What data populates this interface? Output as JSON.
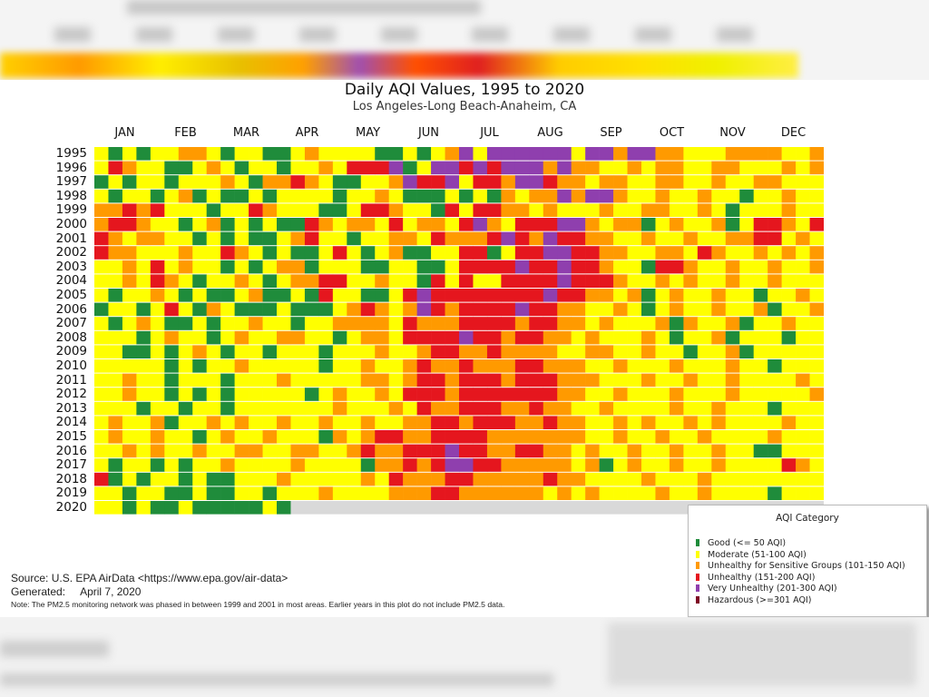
{
  "chart_data": {
    "type": "heatmap",
    "title": "Daily AQI Values, 1995 to 2020",
    "subtitle": "Los Angeles-Long Beach-Anaheim, CA",
    "x_tick_labels": [
      "JAN",
      "FEB",
      "MAR",
      "APR",
      "MAY",
      "JUN",
      "JUL",
      "AUG",
      "SEP",
      "OCT",
      "NOV",
      "DEC"
    ],
    "resolution_note_codes": {
      "G": "good",
      "M": "moderate",
      "U": "usg",
      "R": "unhealthy",
      "P": "very_unhealthy",
      "H": "hazardous"
    },
    "years": [
      "1995",
      "1996",
      "1997",
      "1998",
      "1999",
      "2000",
      "2001",
      "2002",
      "2003",
      "2004",
      "2005",
      "2006",
      "2007",
      "2008",
      "2009",
      "2010",
      "2011",
      "2012",
      "2013",
      "2014",
      "2015",
      "2016",
      "2017",
      "2018",
      "2019",
      "2020"
    ],
    "weekly_categories": [
      "MGMGMMUUMGMMGGMUMMMMGGMGMUPMPPPPPPMPPUPPUUMMMUUUUMMU",
      "MRUMMGGMUMGMMGMMUMRRRPGMPPRPRPPPUPUUMMUMUUMMUUMMMUMU",
      "GMGMMGMMMUMGUURUMGGMMUPRRPMRRUPPRUUMUUMMUUMMUMMUUMMM",
      "MGMMGMUGMGGMGMMMMGMMUMGGGMGMGUMUUPUPPUMMUMMUMMGMMUMM",
      "UURURMMMGMMRUMMMGGMRRUMMGRMRRUUMUMMMUMMUUMMUMGMMMUMM",
      "URRUMMGMUGMGMGGRUMUUMRMUUMRPUMRRRPPUMUUGMUMMUGMRRUMR",
      "RUMUUMMGMGMGGMURMMGMMUUMRUUURPRUPRRUUMMUMMUMMUURRMUM",
      "RUUMMMUMMRUMGMGGMRMGMUGGMMRRGMRRPPRRUUMMUUMRUMMUMUMU",
      "MMUMRMUMMGMGMUUGMMMGGMMGGMRRRRPRRPRRUMMGRRUMMUMMUMMU",
      "MMUMRUMGMMUMGMUURRMMUMMGRMRMMRRRRPRRRUMMUMUMMUMMUMMM",
      "MGMMUMGMGGMUGGMGRMMGGMRPRRRRRRRRPRRUUMUGMUMMUMMGMMUM",
      "GMMGMRMGUMGGGMGGGMURUMUPRURRRRPRRUUMMUMGMUMMUMMUGMMU",
      "MGMUMGGMGMMUMMGMMUUUUMRUUURRRRURRUUMUMMMUGUMMUGMMUMM",
      "MMMGMUMMGMUMMUUMMGMUUMRRRRPRRURRUUMUMMMUMGMMUGMMMGMM",
      "MMGGMGMUMGMMGMMMGMMMUMMURRUURUUUUMMUUMMUMMGMMUGMMMMM",
      "MMMMMGMGMMUMMMMMGMMUMMURUURUUURRUUUMMUMMMUMMMUMMGMMM",
      "MMUMMGMMMGMMMUMMMMMUUMURRURRRURRRUUUMMMUMMUMMUMMMMUM",
      "MMUMMGMGMGMMMMMGMUMMUMRRRURRRRRRRUUMMUMMMUMMMUMMMMMU",
      "MMMGMMGMMGMMMMMMMUMMMUMRUURRRUURUUMMUMMMMUMMUMMMGMMM",
      "MUMMUGMMUMUMMUMMUMMUMMUURRURRRUURUUMMUMUMMUMUMMMMUMM",
      "MUMMUMMGMUMMUMMMGUMURRUURRRRUUUUUUUMMUMMUMMUMMMMUMMM",
      "MMUMUMMUMMUUMMUUMMURUURRRPRRUURRUUMUMMUMMUMMUMMGGMMM",
      "MGMMGMGMMUMMMMUMMMMGUURURPPRRUUUUUMUGMUMMUMMUMMMMRUM",
      "RGMGMMGMGGMMMUMMMMMUMRUUURRUUUUURUUMMMMUMMMUMMMMMMMM",
      "MMGMMGGMGGMMGMMMUMMMMUUURRUUUUUUMUMUMMMMUMMUMMMMGMMM",
      "MMGMGGMGGGGGMG"
    ],
    "weeks_per_year": 52,
    "legend": {
      "title": "AQI Category",
      "placement": "bottom-right",
      "entries": [
        {
          "code": "G",
          "label": "Good (<= 50 AQI)",
          "color": "#1f8c3b"
        },
        {
          "code": "M",
          "label": "Moderate (51-100 AQI)",
          "color": "#ffff00"
        },
        {
          "code": "U",
          "label": "Unhealthy for Sensitive Groups (101-150 AQI)",
          "color": "#ff9a00"
        },
        {
          "code": "R",
          "label": "Unhealthy (151-200 AQI)",
          "color": "#e5161e"
        },
        {
          "code": "P",
          "label": "Very Unhealthy (201-300 AQI)",
          "color": "#8f3fae"
        },
        {
          "code": "H",
          "label": "Hazardous (>=301 AQI)",
          "color": "#7e0023"
        }
      ]
    },
    "no_data_color": "#d9d9d9"
  },
  "footer": {
    "source": "Source: U.S. EPA AirData <https://www.epa.gov/air-data>",
    "generated_label": "Generated:",
    "generated_date": "April 7, 2020",
    "note": "Note: The PM2.5 monitoring network was phased in between 1999 and 2001 in most areas. Earlier years in this plot do not include PM2.5 data."
  }
}
